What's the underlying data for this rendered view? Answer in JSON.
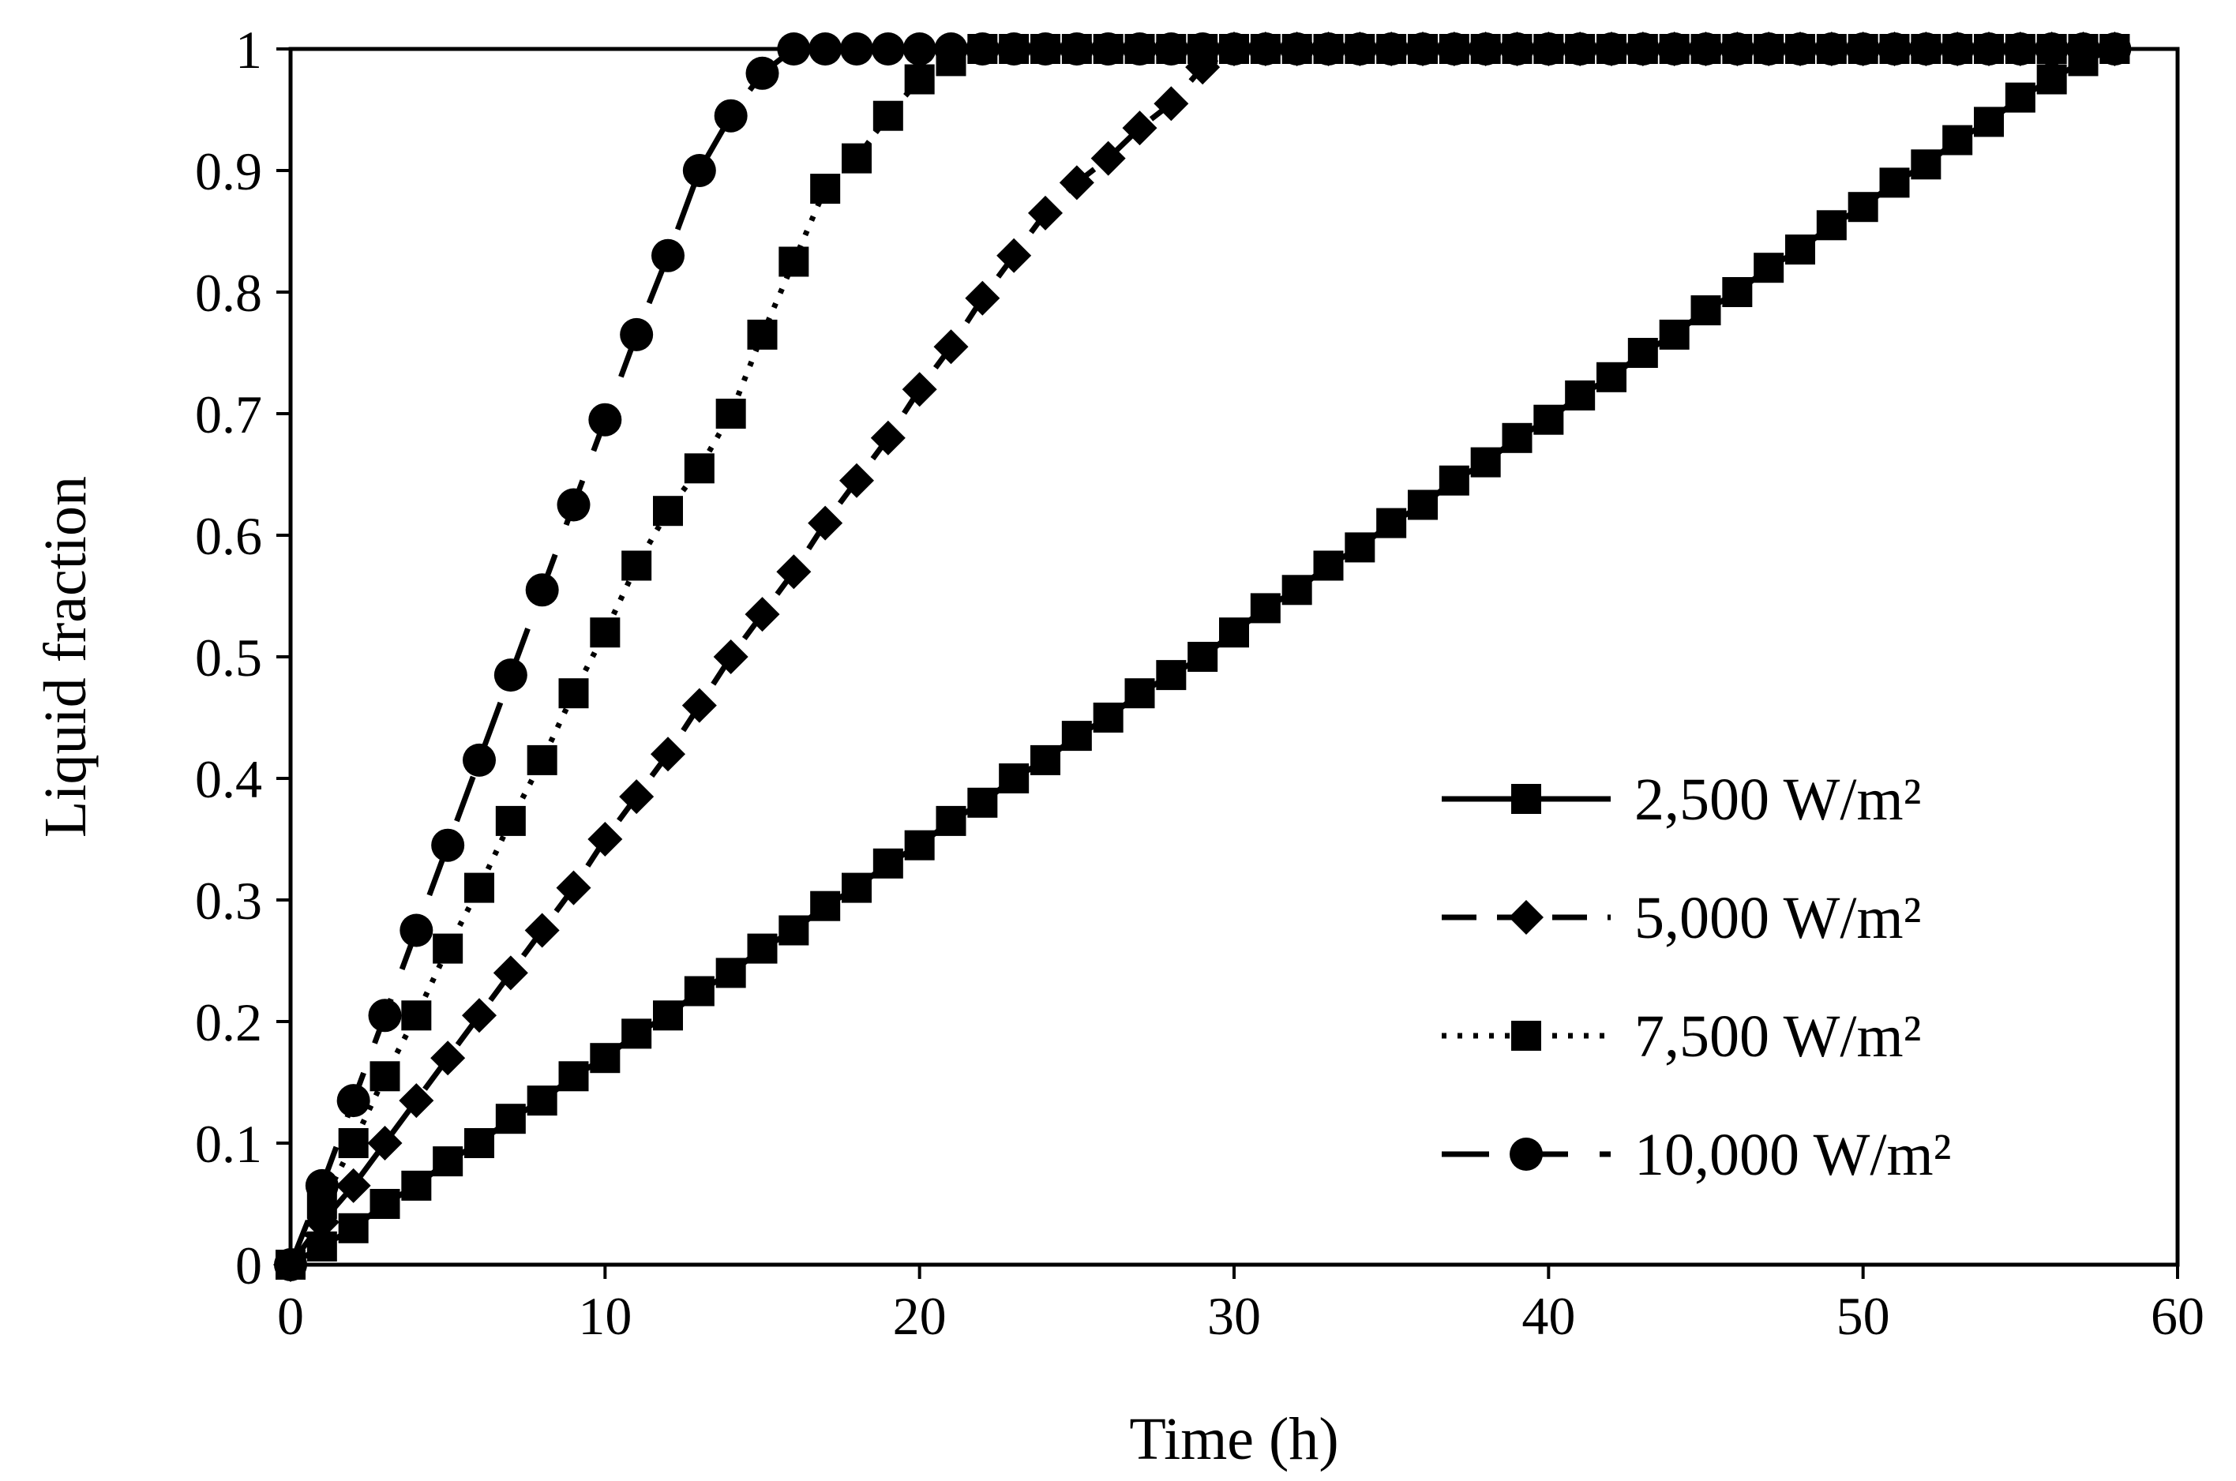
{
  "chart_data": {
    "type": "line",
    "title": "",
    "xlabel": "Time (h)",
    "ylabel": "Liquid fraction",
    "xlim": [
      0,
      60
    ],
    "ylim": [
      0,
      1
    ],
    "x_ticks": [
      "0",
      "10",
      "20",
      "30",
      "40",
      "50",
      "60"
    ],
    "y_ticks": [
      "0",
      "0.1",
      "0.2",
      "0.3",
      "0.4",
      "0.5",
      "0.6",
      "0.7",
      "0.8",
      "0.9",
      "1"
    ],
    "grid": false,
    "legend_position": "bottom-right",
    "series": [
      {
        "name": "2,500 W/m²",
        "line_style": "solid",
        "marker": "square",
        "x": [
          0,
          1,
          2,
          3,
          4,
          5,
          6,
          7,
          8,
          9,
          10,
          11,
          12,
          13,
          14,
          15,
          16,
          17,
          18,
          19,
          20,
          21,
          22,
          23,
          24,
          25,
          26,
          27,
          28,
          29,
          30,
          31,
          32,
          33,
          34,
          35,
          36,
          37,
          38,
          39,
          40,
          41,
          42,
          43,
          44,
          45,
          46,
          47,
          48,
          49,
          50,
          51,
          52,
          53,
          54,
          55,
          56,
          57,
          58
        ],
        "y": [
          0,
          0.015,
          0.03,
          0.05,
          0.065,
          0.085,
          0.1,
          0.12,
          0.135,
          0.155,
          0.17,
          0.19,
          0.205,
          0.225,
          0.24,
          0.26,
          0.275,
          0.295,
          0.31,
          0.33,
          0.345,
          0.365,
          0.38,
          0.4,
          0.415,
          0.435,
          0.45,
          0.47,
          0.485,
          0.5,
          0.52,
          0.54,
          0.555,
          0.575,
          0.59,
          0.61,
          0.625,
          0.645,
          0.66,
          0.68,
          0.695,
          0.715,
          0.73,
          0.75,
          0.765,
          0.785,
          0.8,
          0.82,
          0.835,
          0.855,
          0.87,
          0.89,
          0.905,
          0.925,
          0.94,
          0.96,
          0.975,
          0.99,
          1.0
        ]
      },
      {
        "name": "5,000 W/m²",
        "line_style": "dashed",
        "marker": "diamond",
        "x": [
          0,
          1,
          2,
          3,
          4,
          5,
          6,
          7,
          8,
          9,
          10,
          11,
          12,
          13,
          14,
          15,
          16,
          17,
          18,
          19,
          20,
          21,
          22,
          23,
          24,
          25,
          26,
          27,
          28,
          29,
          30,
          31,
          32,
          33,
          34,
          35,
          36,
          37,
          38,
          39,
          40,
          41,
          42,
          43,
          44,
          45,
          46,
          47,
          48,
          49,
          50,
          51,
          52,
          53,
          54,
          55,
          56,
          57,
          58
        ],
        "y": [
          0,
          0.035,
          0.065,
          0.1,
          0.135,
          0.17,
          0.205,
          0.24,
          0.275,
          0.31,
          0.35,
          0.385,
          0.42,
          0.46,
          0.5,
          0.535,
          0.57,
          0.61,
          0.645,
          0.68,
          0.72,
          0.755,
          0.795,
          0.83,
          0.865,
          0.89,
          0.91,
          0.935,
          0.955,
          0.985,
          1,
          1,
          1,
          1,
          1,
          1,
          1,
          1,
          1,
          1,
          1,
          1,
          1,
          1,
          1,
          1,
          1,
          1,
          1,
          1,
          1,
          1,
          1,
          1,
          1,
          1,
          1,
          1,
          1
        ]
      },
      {
        "name": "7,500 W/m²",
        "line_style": "dotted",
        "marker": "square",
        "x": [
          0,
          1,
          2,
          3,
          4,
          5,
          6,
          7,
          8,
          9,
          10,
          11,
          12,
          13,
          14,
          15,
          16,
          17,
          18,
          19,
          20,
          21,
          22,
          23,
          24,
          25,
          26,
          27,
          28,
          29,
          30,
          31,
          32,
          33,
          34,
          35,
          36,
          37,
          38,
          39,
          40,
          41,
          42,
          43,
          44,
          45,
          46,
          47,
          48,
          49,
          50,
          51,
          52,
          53,
          54,
          55,
          56,
          57,
          58
        ],
        "y": [
          0,
          0.05,
          0.1,
          0.155,
          0.205,
          0.26,
          0.31,
          0.365,
          0.415,
          0.47,
          0.52,
          0.575,
          0.62,
          0.655,
          0.7,
          0.765,
          0.825,
          0.885,
          0.91,
          0.945,
          0.975,
          0.99,
          1,
          1,
          1,
          1,
          1,
          1,
          1,
          1,
          1,
          1,
          1,
          1,
          1,
          1,
          1,
          1,
          1,
          1,
          1,
          1,
          1,
          1,
          1,
          1,
          1,
          1,
          1,
          1,
          1,
          1,
          1,
          1,
          1,
          1,
          1,
          1,
          1
        ]
      },
      {
        "name": "10,000 W/m²",
        "line_style": "long-dashed",
        "marker": "circle",
        "x": [
          0,
          1,
          2,
          3,
          4,
          5,
          6,
          7,
          8,
          9,
          10,
          11,
          12,
          13,
          14,
          15,
          16,
          17,
          18,
          19,
          20,
          21,
          22,
          23,
          24,
          25,
          26,
          27,
          28,
          29,
          30,
          31,
          32,
          33,
          34,
          35,
          36,
          37,
          38,
          39,
          40,
          41,
          42,
          43,
          44,
          45,
          46,
          47,
          48,
          49,
          50,
          51,
          52,
          53,
          54,
          55,
          56,
          57,
          58
        ],
        "y": [
          0,
          0.065,
          0.135,
          0.205,
          0.275,
          0.345,
          0.415,
          0.485,
          0.555,
          0.625,
          0.695,
          0.765,
          0.83,
          0.9,
          0.945,
          0.98,
          1,
          1,
          1,
          1,
          1,
          1,
          1,
          1,
          1,
          1,
          1,
          1,
          1,
          1,
          1,
          1,
          1,
          1,
          1,
          1,
          1,
          1,
          1,
          1,
          1,
          1,
          1,
          1,
          1,
          1,
          1,
          1,
          1,
          1,
          1,
          1,
          1,
          1,
          1,
          1,
          1,
          1,
          1
        ]
      }
    ]
  }
}
